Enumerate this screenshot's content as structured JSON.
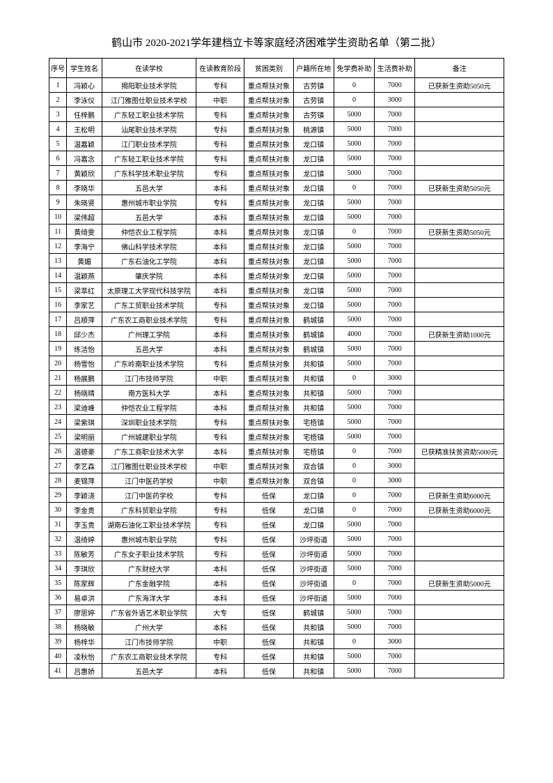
{
  "title": "鹤山市 2020-2021学年建档立卡等家庭经济困难学生资助名单（第二批）",
  "headers": {
    "idx": "序号",
    "name": "学生姓名",
    "school": "在读学校",
    "stage": "在读教育阶段",
    "type": "贫困类别",
    "loc": "户籍所在地",
    "tuition": "免学费补助",
    "living": "生活费补助",
    "note": "备注"
  },
  "rows": [
    {
      "idx": "1",
      "name": "冯颖心",
      "school": "揭阳职业技术学院",
      "stage": "专科",
      "type": "重点帮扶对象",
      "loc": "古劳镇",
      "tuition": "0",
      "living": "7000",
      "note": "已获新生资助5050元"
    },
    {
      "idx": "2",
      "name": "李泳仪",
      "school": "江门雅图仕职业技术学校",
      "stage": "中职",
      "type": "重点帮扶对象",
      "loc": "古劳镇",
      "tuition": "0",
      "living": "3000",
      "note": ""
    },
    {
      "idx": "3",
      "name": "任梓鹏",
      "school": "广东轻工职业技术学院",
      "stage": "专科",
      "type": "重点帮扶对象",
      "loc": "古劳镇",
      "tuition": "5000",
      "living": "7000",
      "note": ""
    },
    {
      "idx": "4",
      "name": "王松明",
      "school": "汕尾职业技术学院",
      "stage": "专科",
      "type": "重点帮扶对象",
      "loc": "桃源镇",
      "tuition": "5000",
      "living": "7000",
      "note": ""
    },
    {
      "idx": "5",
      "name": "温嘉颖",
      "school": "江门职业技术学院",
      "stage": "专科",
      "type": "重点帮扶对象",
      "loc": "龙口镇",
      "tuition": "5000",
      "living": "7000",
      "note": ""
    },
    {
      "idx": "6",
      "name": "冯嘉念",
      "school": "广东轻工职业技术学院",
      "stage": "专科",
      "type": "重点帮扶对象",
      "loc": "龙口镇",
      "tuition": "5000",
      "living": "7000",
      "note": ""
    },
    {
      "idx": "7",
      "name": "黄颖欣",
      "school": "广东科学技术职业学院",
      "stage": "专科",
      "type": "重点帮扶对象",
      "loc": "龙口镇",
      "tuition": "5000",
      "living": "7000",
      "note": ""
    },
    {
      "idx": "8",
      "name": "李晓华",
      "school": "五邑大学",
      "stage": "本科",
      "type": "重点帮扶对象",
      "loc": "龙口镇",
      "tuition": "0",
      "living": "7000",
      "note": "已获新生资助5050元"
    },
    {
      "idx": "9",
      "name": "朱晓贤",
      "school": "惠州城市职业学院",
      "stage": "专科",
      "type": "重点帮扶对象",
      "loc": "龙口镇",
      "tuition": "5000",
      "living": "7000",
      "note": ""
    },
    {
      "idx": "10",
      "name": "梁伟超",
      "school": "五邑大学",
      "stage": "本科",
      "type": "重点帮扶对象",
      "loc": "龙口镇",
      "tuition": "5000",
      "living": "7000",
      "note": ""
    },
    {
      "idx": "11",
      "name": "黄绮雯",
      "school": "仲恺农业工程学院",
      "stage": "本科",
      "type": "重点帮扶对象",
      "loc": "龙口镇",
      "tuition": "0",
      "living": "7000",
      "note": "已获新生资助5050元"
    },
    {
      "idx": "12",
      "name": "李海宁",
      "school": "佛山科学技术学院",
      "stage": "本科",
      "type": "重点帮扶对象",
      "loc": "龙口镇",
      "tuition": "5000",
      "living": "7000",
      "note": ""
    },
    {
      "idx": "13",
      "name": "黄媚",
      "school": "广东石油化工学院",
      "stage": "本科",
      "type": "重点帮扶对象",
      "loc": "龙口镇",
      "tuition": "5000",
      "living": "7000",
      "note": ""
    },
    {
      "idx": "14",
      "name": "温颖燕",
      "school": "肇庆学院",
      "stage": "本科",
      "type": "重点帮扶对象",
      "loc": "龙口镇",
      "tuition": "5000",
      "living": "7000",
      "note": ""
    },
    {
      "idx": "15",
      "name": "梁萃红",
      "school": "太原理工大学现代科技学院",
      "stage": "本科",
      "type": "重点帮扶对象",
      "loc": "龙口镇",
      "tuition": "5000",
      "living": "7000",
      "note": ""
    },
    {
      "idx": "16",
      "name": "李家艺",
      "school": "广东工贸职业技术学院",
      "stage": "专科",
      "type": "重点帮扶对象",
      "loc": "龙口镇",
      "tuition": "5000",
      "living": "7000",
      "note": ""
    },
    {
      "idx": "17",
      "name": "吕顺萍",
      "school": "广东农工商职业技术学院",
      "stage": "专科",
      "type": "重点帮扶对象",
      "loc": "鹤城镇",
      "tuition": "5000",
      "living": "7000",
      "note": ""
    },
    {
      "idx": "18",
      "name": "邱少杰",
      "school": "广州理工学院",
      "stage": "本科",
      "type": "重点帮扶对象",
      "loc": "鹤城镇",
      "tuition": "4000",
      "living": "7000",
      "note": "已获新生资助1000元"
    },
    {
      "idx": "19",
      "name": "练洁怡",
      "school": "五邑大学",
      "stage": "本科",
      "type": "重点帮扶对象",
      "loc": "鹤城镇",
      "tuition": "5000",
      "living": "7000",
      "note": ""
    },
    {
      "idx": "20",
      "name": "杨雪怡",
      "school": "广东岭南职业技术学院",
      "stage": "专科",
      "type": "重点帮扶对象",
      "loc": "共和镇",
      "tuition": "5000",
      "living": "7000",
      "note": ""
    },
    {
      "idx": "21",
      "name": "杨展鹏",
      "school": "江门市技师学院",
      "stage": "中职",
      "type": "重点帮扶对象",
      "loc": "共和镇",
      "tuition": "0",
      "living": "3000",
      "note": ""
    },
    {
      "idx": "22",
      "name": "杨晓晴",
      "school": "南方医科大学",
      "stage": "本科",
      "type": "重点帮扶对象",
      "loc": "共和镇",
      "tuition": "5000",
      "living": "7000",
      "note": ""
    },
    {
      "idx": "23",
      "name": "梁迪峰",
      "school": "仲恺农业工程学院",
      "stage": "本科",
      "type": "重点帮扶对象",
      "loc": "共和镇",
      "tuition": "5000",
      "living": "7000",
      "note": ""
    },
    {
      "idx": "24",
      "name": "梁紫琪",
      "school": "深圳职业技术学院",
      "stage": "专科",
      "type": "重点帮扶对象",
      "loc": "宅梧镇",
      "tuition": "5000",
      "living": "7000",
      "note": ""
    },
    {
      "idx": "25",
      "name": "梁明丽",
      "school": "广州城建职业学院",
      "stage": "专科",
      "type": "重点帮扶对象",
      "loc": "宅梧镇",
      "tuition": "5000",
      "living": "7000",
      "note": ""
    },
    {
      "idx": "26",
      "name": "温德豪",
      "school": "广东工商职业技术大学",
      "stage": "本科",
      "type": "重点帮扶对象",
      "loc": "宅梧镇",
      "tuition": "0",
      "living": "7000",
      "note": "已获精准扶贫资助5000元"
    },
    {
      "idx": "27",
      "name": "李艺森",
      "school": "江门雅图仕职业技术学校",
      "stage": "中职",
      "type": "重点帮扶对象",
      "loc": "双合镇",
      "tuition": "0",
      "living": "3000",
      "note": ""
    },
    {
      "idx": "28",
      "name": "麦锦萍",
      "school": "江门中医药学校",
      "stage": "中职",
      "type": "重点帮扶对象",
      "loc": "双合镇",
      "tuition": "0",
      "living": "3000",
      "note": ""
    },
    {
      "idx": "29",
      "name": "李颖浇",
      "school": "江门中医药学校",
      "stage": "专科",
      "type": "低保",
      "loc": "龙口镇",
      "tuition": "0",
      "living": "7000",
      "note": "已获新生资助6000元"
    },
    {
      "idx": "30",
      "name": "李金贵",
      "school": "广东科贸职业学院",
      "stage": "专科",
      "type": "低保",
      "loc": "龙口镇",
      "tuition": "0",
      "living": "7000",
      "note": "已获新生资助6000元"
    },
    {
      "idx": "31",
      "name": "李玉贵",
      "school": "湖南石油化工职业技术学院",
      "stage": "专科",
      "type": "低保",
      "loc": "龙口镇",
      "tuition": "5000",
      "living": "7000",
      "note": ""
    },
    {
      "idx": "32",
      "name": "温绮婷",
      "school": "惠州城市职业学院",
      "stage": "专科",
      "type": "低保",
      "loc": "沙坪街道",
      "tuition": "5000",
      "living": "7000",
      "note": ""
    },
    {
      "idx": "33",
      "name": "陈敏芳",
      "school": "广东女子职业技术学院",
      "stage": "专科",
      "type": "低保",
      "loc": "沙坪街道",
      "tuition": "5000",
      "living": "7000",
      "note": ""
    },
    {
      "idx": "34",
      "name": "李琪欣",
      "school": "广东财经大学",
      "stage": "本科",
      "type": "低保",
      "loc": "沙坪街道",
      "tuition": "5000",
      "living": "7000",
      "note": ""
    },
    {
      "idx": "35",
      "name": "陈家辉",
      "school": "广东金融学院",
      "stage": "本科",
      "type": "低保",
      "loc": "沙坪街道",
      "tuition": "0",
      "living": "7000",
      "note": "已获新生资助5000元"
    },
    {
      "idx": "36",
      "name": "易卓洪",
      "school": "广东海洋大学",
      "stage": "本科",
      "type": "低保",
      "loc": "沙坪街道",
      "tuition": "5000",
      "living": "7000",
      "note": ""
    },
    {
      "idx": "37",
      "name": "廖思婷",
      "school": "广东省外语艺术职业学院",
      "stage": "大专",
      "type": "低保",
      "loc": "鹤城镇",
      "tuition": "5000",
      "living": "7000",
      "note": ""
    },
    {
      "idx": "38",
      "name": "杨晓敏",
      "school": "广州大学",
      "stage": "本科",
      "type": "低保",
      "loc": "共和镇",
      "tuition": "5000",
      "living": "7000",
      "note": ""
    },
    {
      "idx": "39",
      "name": "杨梓华",
      "school": "江门市技师学院",
      "stage": "中职",
      "type": "低保",
      "loc": "共和镇",
      "tuition": "0",
      "living": "3000",
      "note": ""
    },
    {
      "idx": "40",
      "name": "凌秋怡",
      "school": "广东农工商职业技术学院",
      "stage": "专科",
      "type": "低保",
      "loc": "共和镇",
      "tuition": "5000",
      "living": "7000",
      "note": ""
    },
    {
      "idx": "41",
      "name": "吕惠娇",
      "school": "五邑大学",
      "stage": "本科",
      "type": "低保",
      "loc": "共和镇",
      "tuition": "5000",
      "living": "7000",
      "note": ""
    }
  ]
}
